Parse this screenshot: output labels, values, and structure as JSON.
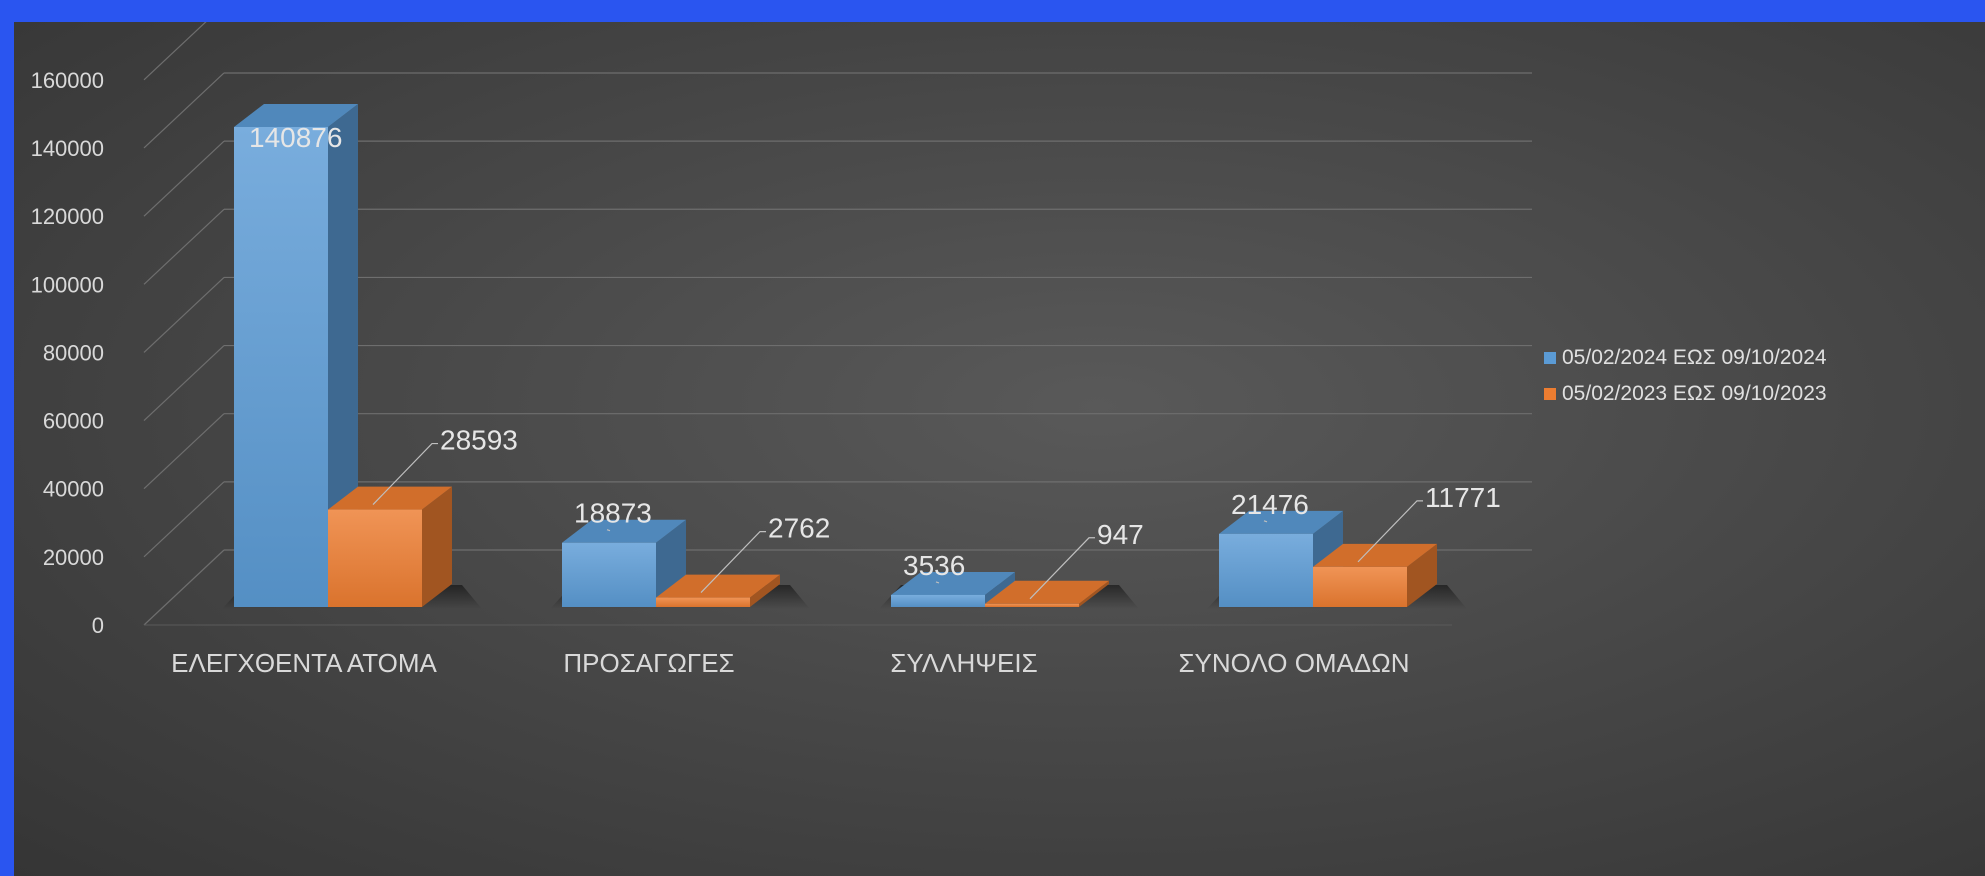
{
  "chart_data": {
    "type": "bar",
    "title": "",
    "xlabel": "",
    "ylabel": "",
    "categories": [
      "ΕΛΕΓΧΘΕΝΤΑ ΑΤΟΜΑ",
      "ΠΡΟΣΑΓΩΓΕΣ",
      "ΣΥΛΛΗΨΕΙΣ",
      "ΣΥΝΟΛΟ ΟΜΑΔΩΝ"
    ],
    "series": [
      {
        "name": "05/02/2024 ΕΩΣ 09/10/2024",
        "color": "#5b9bd5",
        "values": [
          140876,
          18873,
          3536,
          21476
        ]
      },
      {
        "name": "05/02/2023 ΕΩΣ 09/10/2023",
        "color": "#ed7d31",
        "values": [
          28593,
          2762,
          947,
          11771
        ]
      }
    ],
    "ylim": [
      0,
      160000
    ],
    "yticks": [
      0,
      20000,
      40000,
      60000,
      80000,
      100000,
      120000,
      140000,
      160000
    ],
    "grid": true,
    "legend_position": "right",
    "style": "3d-clustered-column"
  }
}
